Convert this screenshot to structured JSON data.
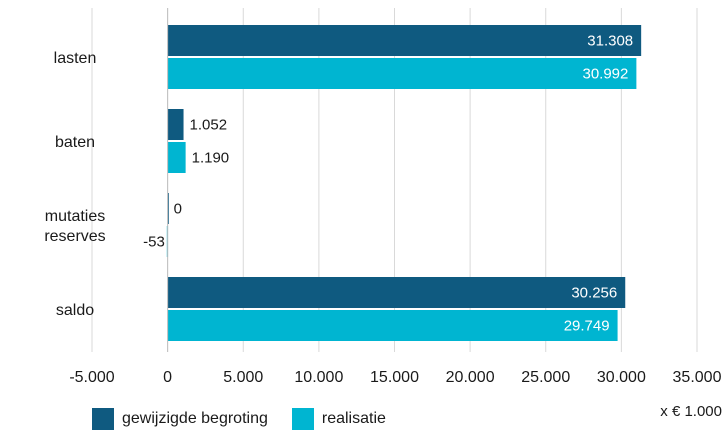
{
  "chart_data": {
    "type": "bar",
    "orientation": "horizontal",
    "categories": [
      [
        "lasten"
      ],
      [
        "baten"
      ],
      [
        "mutaties",
        "reserves"
      ],
      [
        "saldo"
      ]
    ],
    "series": [
      {
        "name": "gewijzigde begroting",
        "color": "#0f5a80",
        "values": [
          31308,
          1052,
          0,
          30256
        ],
        "labels": [
          "31.308",
          "1.052",
          "0",
          "30.256"
        ]
      },
      {
        "name": "realisatie",
        "color": "#00b5d1",
        "values": [
          30992,
          1190,
          -53,
          29749
        ],
        "labels": [
          "30.992",
          "1.190",
          "-53",
          "29.749"
        ]
      }
    ],
    "xlim": [
      -5000,
      35000
    ],
    "xticks": [
      -5000,
      0,
      5000,
      10000,
      15000,
      20000,
      25000,
      30000,
      35000
    ],
    "xtick_labels": [
      "-5.000",
      "0",
      "5.000",
      "10.000",
      "15.000",
      "20.000",
      "25.000",
      "30.000",
      "35.000"
    ],
    "unit_label": "x € 1.000",
    "grid": "vertical",
    "legend_position": "bottom-left"
  }
}
